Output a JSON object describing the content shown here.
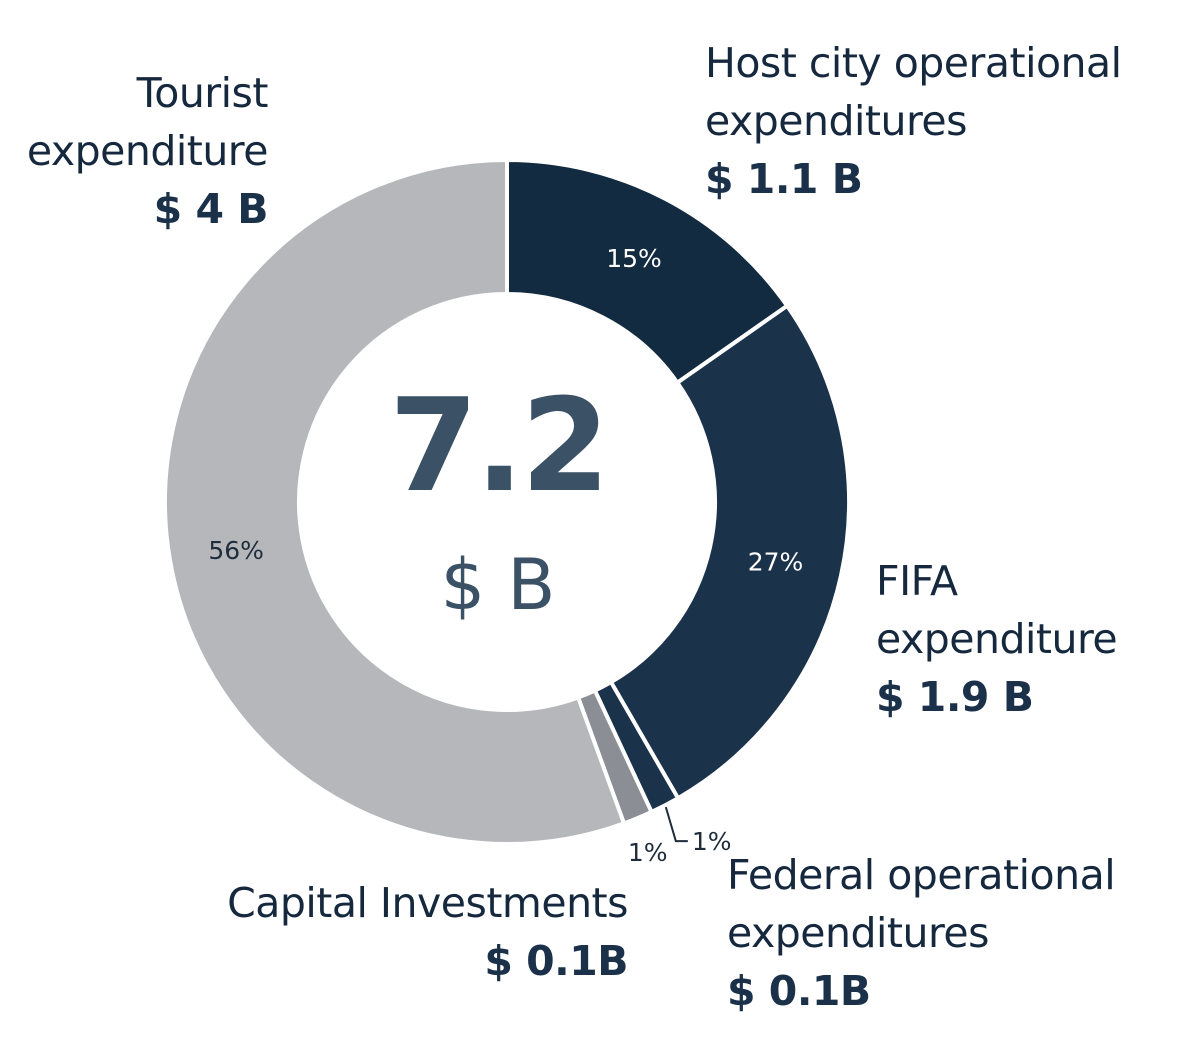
{
  "chart_data": {
    "type": "pie",
    "donut": true,
    "center": {
      "total": "7.2",
      "unit": "$ B"
    },
    "slices": [
      {
        "label": "Host city operational expenditures",
        "amount": "$ 1.1 B",
        "value": 1.1,
        "percent_label": "15%",
        "color": "#132b40"
      },
      {
        "label": "FIFA expenditure",
        "amount": "$ 1.9 B",
        "value": 1.9,
        "percent_label": "27%",
        "color": "#1b324b"
      },
      {
        "label": "Federal operational expenditures",
        "amount": "$ 0.1B",
        "value": 0.1,
        "percent_label": "1%",
        "color": "#1b324b"
      },
      {
        "label": "Capital Investments",
        "amount": "$ 0.1B",
        "value": 0.1,
        "percent_label": "1%",
        "color": "#8b8f95"
      },
      {
        "label": "Tourist expenditure",
        "amount": "$ 4 B",
        "value": 4.0,
        "percent_label": "56%",
        "color": "#b5b7bb"
      }
    ],
    "colors": {
      "inside_label_dark_bg": "#ffffff",
      "inside_label_light_bg": "#1f2d3b",
      "leader_line": "#1f2d3b",
      "separator": "#ffffff"
    }
  }
}
